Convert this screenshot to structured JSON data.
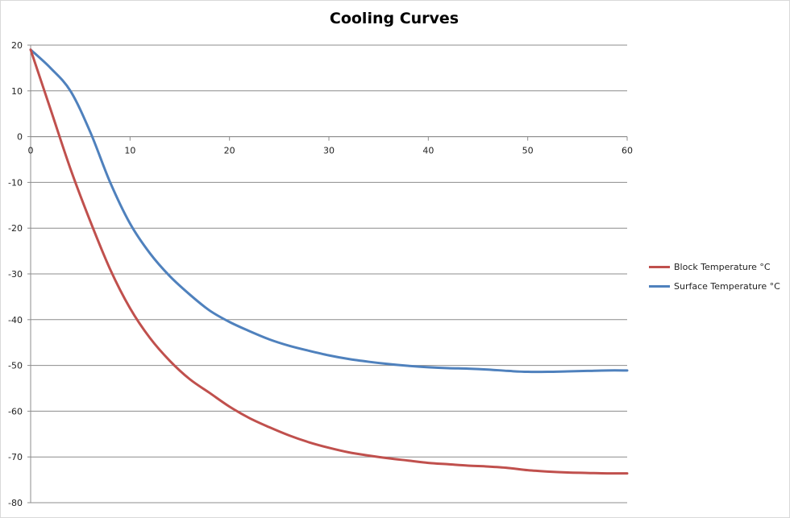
{
  "chart_data": {
    "type": "line",
    "title": "Cooling Curves",
    "xlabel": "",
    "ylabel": "",
    "xlim": [
      0,
      60
    ],
    "ylim": [
      -80,
      20
    ],
    "x_ticks": [
      0,
      10,
      20,
      30,
      40,
      50,
      60
    ],
    "y_ticks": [
      20,
      10,
      0,
      -10,
      -20,
      -30,
      -40,
      -50,
      -60,
      -70,
      -80
    ],
    "grid": "horizontal",
    "legend_position": "right",
    "series": [
      {
        "name": "Block Temperature °C",
        "color": "#c0504d",
        "x": [
          0,
          2,
          4,
          6,
          8,
          10,
          12,
          14,
          16,
          18,
          20,
          22,
          24,
          26,
          28,
          30,
          32,
          34,
          36,
          38,
          40,
          42,
          44,
          46,
          48,
          50,
          52,
          54,
          56,
          58,
          60
        ],
        "y": [
          19,
          6,
          -7,
          -18.5,
          -29,
          -37.5,
          -44,
          -49,
          -53,
          -56,
          -59,
          -61.5,
          -63.5,
          -65.3,
          -66.8,
          -68,
          -69,
          -69.7,
          -70.3,
          -70.8,
          -71.3,
          -71.6,
          -71.9,
          -72.1,
          -72.4,
          -72.9,
          -73.2,
          -73.4,
          -73.5,
          -73.6,
          -73.6
        ]
      },
      {
        "name": "Surface Temperature °C",
        "color": "#4f81bd",
        "x": [
          0,
          2,
          4,
          6,
          8,
          10,
          12,
          14,
          16,
          18,
          20,
          22,
          24,
          26,
          28,
          30,
          32,
          34,
          36,
          38,
          40,
          42,
          44,
          46,
          48,
          50,
          52,
          54,
          56,
          58,
          60
        ],
        "y": [
          19,
          15,
          10,
          1,
          -10,
          -19,
          -25.5,
          -30.5,
          -34.5,
          -38,
          -40.5,
          -42.5,
          -44.3,
          -45.7,
          -46.8,
          -47.8,
          -48.6,
          -49.2,
          -49.7,
          -50.1,
          -50.4,
          -50.6,
          -50.7,
          -50.9,
          -51.2,
          -51.4,
          -51.4,
          -51.3,
          -51.2,
          -51.1,
          -51.1
        ]
      }
    ]
  }
}
